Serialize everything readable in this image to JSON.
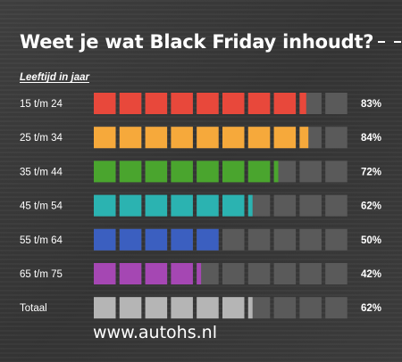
{
  "title": "Weet je wat Black Friday inhoudt?",
  "footer": "www.autohs.nl",
  "colors": {
    "empty_segment": "#5a5a5a",
    "label_text": "#ffffff"
  },
  "chart_data": {
    "type": "bar",
    "orientation": "horizontal",
    "style": "segmented",
    "segments_per_bar": 10,
    "ylabel": "Leeftijd in jaar",
    "xlim": [
      0,
      100
    ],
    "categories": [
      "15 t/m 24",
      "25 t/m 34",
      "35 t/m 44",
      "45 t/m 54",
      "55 t/m 64",
      "65 t/m 75",
      "Totaal"
    ],
    "values": [
      83,
      84,
      72,
      62,
      50,
      42,
      62
    ],
    "value_labels": [
      "83%",
      "84%",
      "72%",
      "62%",
      "50%",
      "42%",
      "62%"
    ],
    "bar_colors": [
      "#e8483b",
      "#f6a93b",
      "#4aa52e",
      "#2bb3b1",
      "#3b5fc0",
      "#a547b3",
      "#b5b5b5"
    ]
  }
}
